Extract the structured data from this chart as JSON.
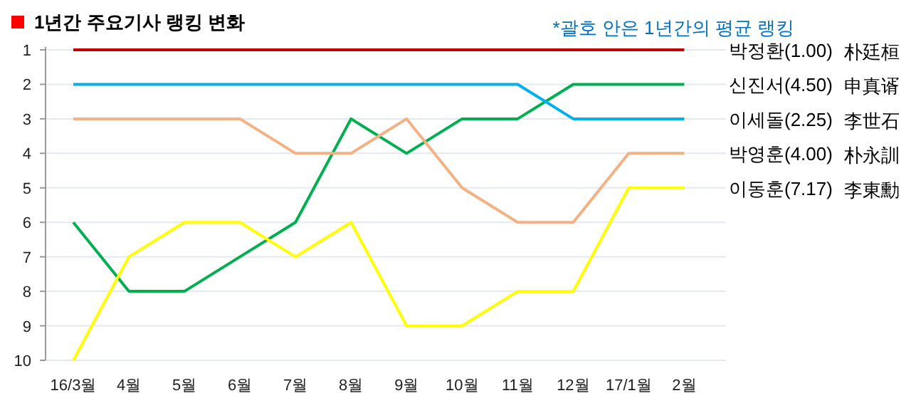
{
  "chart_data": {
    "type": "line",
    "title": "1년간 주요기사 랭킹 변화",
    "subtitle": "*괄호 안은 1년간의 평균 랭킹",
    "categories": [
      "16/3월",
      "4월",
      "5월",
      "6월",
      "7월",
      "8월",
      "9월",
      "10월",
      "11월",
      "12월",
      "17/1월",
      "2월"
    ],
    "series": [
      {
        "name": "박정환(1.00)",
        "color": "#c00000",
        "values": [
          1,
          1,
          1,
          1,
          1,
          1,
          1,
          1,
          1,
          1,
          1,
          1
        ]
      },
      {
        "name": "신진서(4.50)",
        "color": "#00b050",
        "values": [
          6,
          8,
          8,
          7,
          6,
          3,
          4,
          3,
          3,
          2,
          2,
          2
        ]
      },
      {
        "name": "이세돌(2.25)",
        "color": "#00b0f0",
        "values": [
          2,
          2,
          2,
          2,
          2,
          2,
          2,
          2,
          2,
          3,
          3,
          3
        ]
      },
      {
        "name": "박영훈(4.00)",
        "color": "#f4b183",
        "values": [
          3,
          3,
          3,
          3,
          4,
          4,
          3,
          5,
          6,
          6,
          4,
          4
        ]
      },
      {
        "name": "이동훈(7.17)",
        "color": "#ffff00",
        "values": [
          10,
          7,
          6,
          6,
          7,
          6,
          9,
          9,
          8,
          8,
          5,
          5
        ]
      }
    ],
    "ylim": [
      10,
      1
    ],
    "yticks": [
      1,
      2,
      3,
      4,
      5,
      6,
      7,
      8,
      9,
      10
    ],
    "grid": "y",
    "annotations": [
      "朴廷桓",
      "申真谞",
      "李世石",
      "朴永訓",
      "李東勳"
    ]
  }
}
